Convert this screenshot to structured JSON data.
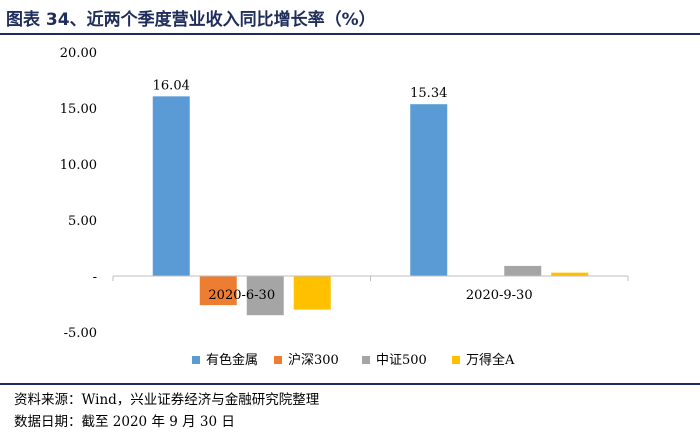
{
  "title": "图表 34、近两个季度营业收入同比增长率（%）",
  "footer": {
    "source": "资料来源：Wind，兴业证券经济与金融研究院整理",
    "date": "数据日期：截至 2020 年 9 月 30 日"
  },
  "chart_data": {
    "type": "bar",
    "categories": [
      "2020-6-30",
      "2020-9-30"
    ],
    "series": [
      {
        "name": "有色金属",
        "values": [
          16.04,
          15.34
        ],
        "color": "#5b9bd5",
        "value_labels": [
          "16.04",
          "15.34"
        ]
      },
      {
        "name": "沪深300",
        "values": [
          -2.6,
          0.0
        ],
        "color": "#ed7d31"
      },
      {
        "name": "中证500",
        "values": [
          -3.5,
          0.9
        ],
        "color": "#a5a5a5"
      },
      {
        "name": "万得全A",
        "values": [
          -3.0,
          0.3
        ],
        "color": "#ffc000"
      }
    ],
    "yticks": [
      "20.00",
      "15.00",
      "10.00",
      "5.00",
      "-",
      "-5.00"
    ],
    "ylim": [
      -5,
      20
    ],
    "legend": "bottom",
    "grid": false
  }
}
